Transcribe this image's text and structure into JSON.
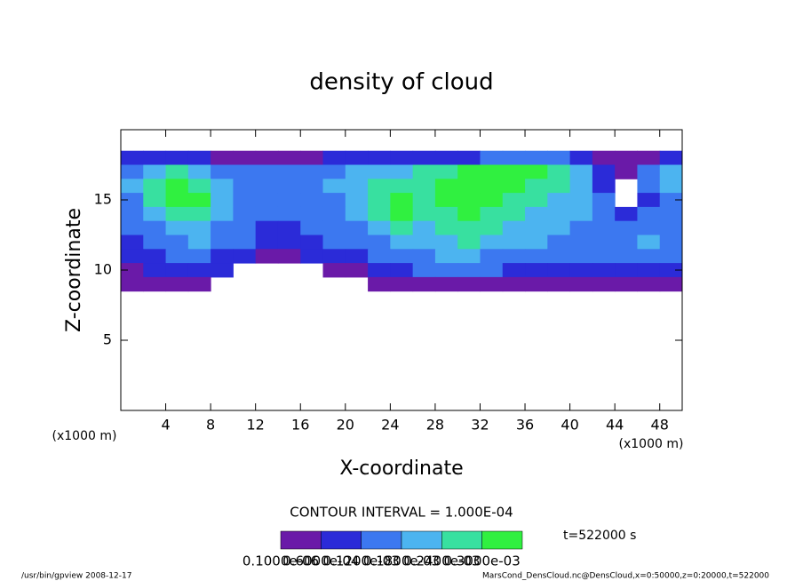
{
  "chart_data": {
    "type": "heatmap",
    "title": "density of cloud",
    "x_label": "X-coordinate",
    "y_label": "Z-coordinate",
    "x_unit": "(x1000 m)",
    "y_unit": "(x1000 m)",
    "contour_interval": "CONTOUR INTERVAL = 1.000E-04",
    "time_label": "t=522000 s",
    "footer_left": "/usr/bin/gpview   2008-12-17",
    "footer_right": "MarsCond_DensCloud.nc@DensCloud,x=0:50000,z=0:20000,t=522000",
    "xlim": [
      0,
      50
    ],
    "ylim": [
      0,
      20
    ],
    "xticks": [
      4,
      8,
      12,
      16,
      20,
      24,
      28,
      32,
      36,
      40,
      44,
      48
    ],
    "yticks": [
      5,
      10,
      15
    ],
    "x": [
      1,
      3,
      5,
      7,
      9,
      11,
      13,
      15,
      17,
      19,
      21,
      23,
      25,
      27,
      29,
      31,
      33,
      35,
      37,
      39,
      41,
      43,
      45,
      47,
      49
    ],
    "y": [
      18,
      17,
      16,
      15,
      14,
      13,
      12,
      11,
      10,
      9
    ],
    "values": [
      [
        6e-05,
        6e-05,
        6e-05,
        6e-05,
        2e-05,
        2e-05,
        2e-05,
        2e-05,
        2e-05,
        6e-05,
        6e-05,
        6e-05,
        6e-05,
        6e-05,
        6e-05,
        6e-05,
        0.00012,
        0.00012,
        0.00012,
        0.00012,
        6e-05,
        2e-05,
        2e-05,
        2e-05,
        6e-05
      ],
      [
        0.00012,
        0.00018,
        0.00024,
        0.00018,
        0.00012,
        0.00012,
        0.00012,
        0.00012,
        0.00012,
        0.00012,
        0.00018,
        0.00018,
        0.00018,
        0.00024,
        0.00024,
        0.0003,
        0.0003,
        0.0003,
        0.0003,
        0.00024,
        0.00018,
        6e-05,
        2e-05,
        0.00012,
        0.00018
      ],
      [
        0.00018,
        0.00024,
        0.0003,
        0.00024,
        0.00018,
        0.00012,
        0.00012,
        0.00012,
        0.00012,
        0.00018,
        0.00018,
        0.00024,
        0.00024,
        0.00024,
        0.0003,
        0.0003,
        0.0003,
        0.0003,
        0.00024,
        0.00024,
        0.00018,
        6e-05,
        0,
        0.00012,
        0.00018
      ],
      [
        0.00012,
        0.00024,
        0.0003,
        0.0003,
        0.00018,
        0.00012,
        0.00012,
        0.00012,
        0.00012,
        0.00012,
        0.00018,
        0.00024,
        0.0003,
        0.00024,
        0.0003,
        0.0003,
        0.0003,
        0.00024,
        0.00024,
        0.00018,
        0.00018,
        0.00012,
        0,
        6e-05,
        0.00012
      ],
      [
        0.00012,
        0.00018,
        0.00024,
        0.00024,
        0.00018,
        0.00012,
        0.00012,
        0.00012,
        0.00012,
        0.00012,
        0.00018,
        0.00024,
        0.0003,
        0.00024,
        0.00024,
        0.0003,
        0.00024,
        0.00024,
        0.00018,
        0.00018,
        0.00018,
        0.00012,
        6e-05,
        0.00012,
        0.00012
      ],
      [
        0.00012,
        0.00012,
        0.00018,
        0.00018,
        0.00012,
        0.00012,
        6e-05,
        6e-05,
        0.00012,
        0.00012,
        0.00012,
        0.00018,
        0.00024,
        0.00018,
        0.00024,
        0.00024,
        0.00024,
        0.00018,
        0.00018,
        0.00018,
        0.00012,
        0.00012,
        0.00012,
        0.00012,
        0.00012
      ],
      [
        6e-05,
        0.00012,
        0.00012,
        0.00018,
        0.00012,
        0.00012,
        6e-05,
        6e-05,
        6e-05,
        0.00012,
        0.00012,
        0.00012,
        0.00018,
        0.00018,
        0.00018,
        0.00024,
        0.00018,
        0.00018,
        0.00018,
        0.00012,
        0.00012,
        0.00012,
        0.00012,
        0.00018,
        0.00012
      ],
      [
        6e-05,
        6e-05,
        0.00012,
        0.00012,
        6e-05,
        6e-05,
        2e-05,
        2e-05,
        6e-05,
        6e-05,
        6e-05,
        0.00012,
        0.00012,
        0.00012,
        0.00018,
        0.00018,
        0.00012,
        0.00012,
        0.00012,
        0.00012,
        0.00012,
        0.00012,
        0.00012,
        0.00012,
        0.00012
      ],
      [
        2e-05,
        6e-05,
        6e-05,
        6e-05,
        6e-05,
        0,
        0,
        0,
        0,
        2e-05,
        2e-05,
        6e-05,
        6e-05,
        0.00012,
        0.00012,
        0.00012,
        0.00012,
        6e-05,
        6e-05,
        6e-05,
        6e-05,
        6e-05,
        6e-05,
        6e-05,
        6e-05
      ],
      [
        2e-05,
        2e-05,
        2e-05,
        2e-05,
        0,
        0,
        0,
        0,
        0,
        0,
        0,
        2e-05,
        2e-05,
        2e-05,
        2e-05,
        2e-05,
        2e-05,
        2e-05,
        2e-05,
        2e-05,
        2e-05,
        2e-05,
        2e-05,
        2e-05,
        2e-05
      ]
    ],
    "colorbar_ticks": [
      {
        "value": 1e-07,
        "label": "0.1000e-06"
      },
      {
        "value": 6e-05,
        "label": "0.6000e-04"
      },
      {
        "value": 0.00012,
        "label": "0.1200e-03"
      },
      {
        "value": 0.00018,
        "label": "0.1800e-03"
      },
      {
        "value": 0.00024,
        "label": "0.2400e-03"
      },
      {
        "value": 0.0003,
        "label": "0.3000e-03"
      }
    ],
    "colors": [
      "#6a1aa8",
      "#2b2bd8",
      "#3c78f0",
      "#4cb4f0",
      "#38e0a0",
      "#30f040"
    ]
  }
}
